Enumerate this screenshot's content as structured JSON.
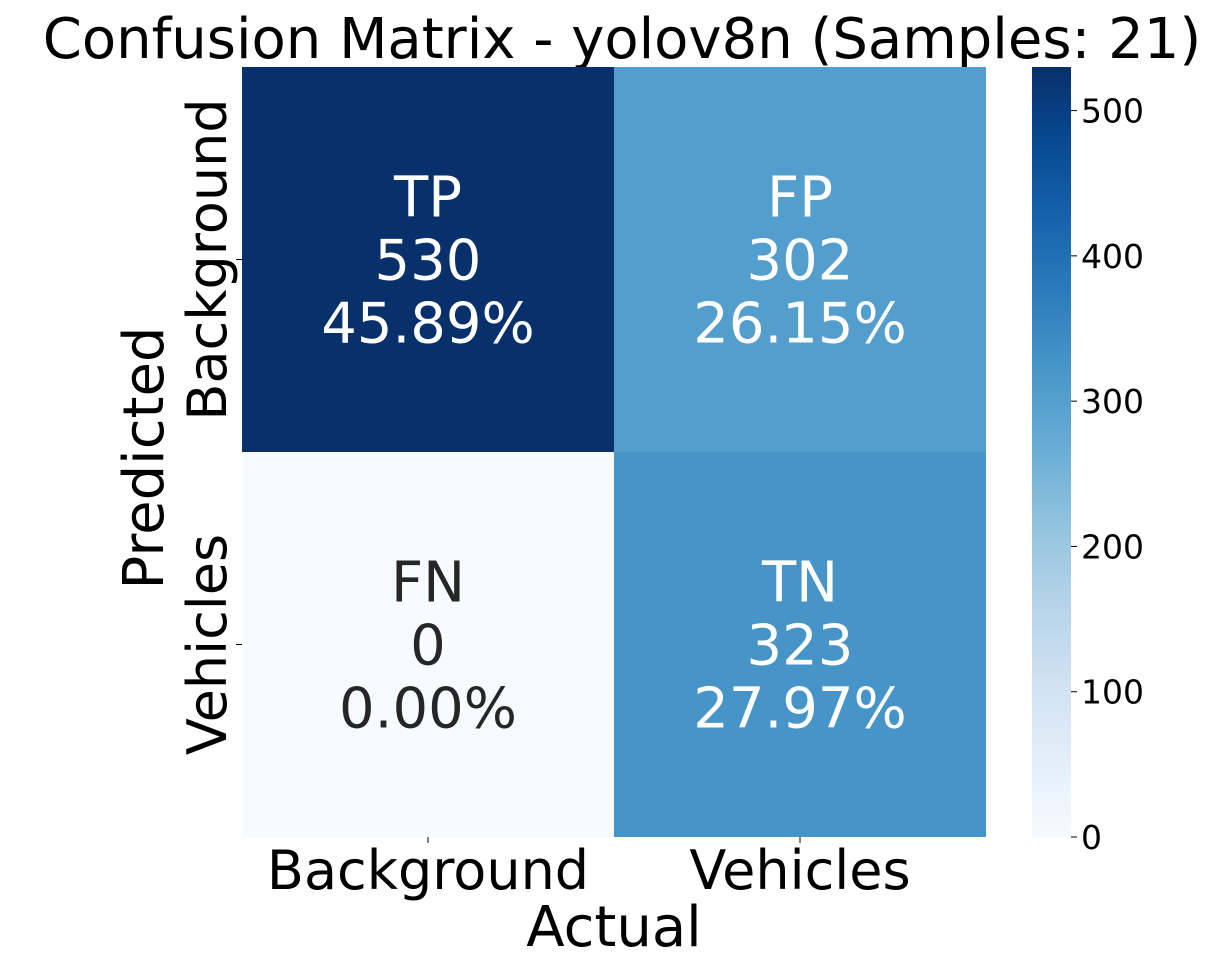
{
  "chart_data": {
    "type": "heatmap",
    "title": "Confusion Matrix - yolov8n (Samples: 21)",
    "xlabel": "Actual",
    "ylabel": "Predicted",
    "x_categories": [
      "Background",
      "Vehicles"
    ],
    "y_categories": [
      "Background",
      "Vehicles"
    ],
    "cells": [
      {
        "row": 0,
        "col": 0,
        "tag": "TP",
        "value": 530,
        "percent": "45.89%"
      },
      {
        "row": 0,
        "col": 1,
        "tag": "FP",
        "value": 302,
        "percent": "26.15%"
      },
      {
        "row": 1,
        "col": 0,
        "tag": "FN",
        "value": 0,
        "percent": "0.00%"
      },
      {
        "row": 1,
        "col": 1,
        "tag": "TN",
        "value": 323,
        "percent": "27.97%"
      }
    ],
    "colormap": "Blues",
    "colorbar": {
      "min": 0,
      "max": 530,
      "ticks": [
        0,
        100,
        200,
        300,
        400,
        500
      ]
    },
    "colors": {
      "low": "#f7fbff",
      "high": "#08306b",
      "text_dark": "#262626",
      "text_light": "#ffffff"
    }
  }
}
